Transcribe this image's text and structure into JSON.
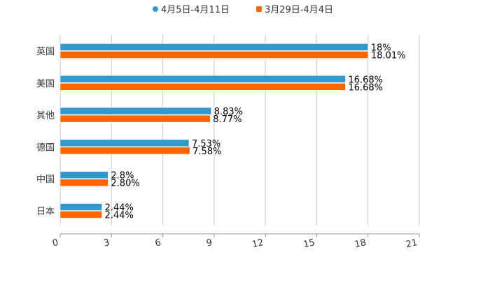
{
  "chart_data": {
    "type": "bar",
    "orientation": "horizontal",
    "title": "",
    "xlabel": "",
    "ylabel": "",
    "xlim": [
      0,
      21
    ],
    "xticks": [
      0,
      3,
      6,
      9,
      12,
      15,
      18,
      21
    ],
    "grid": true,
    "legend_position": "top-center",
    "categories": [
      "英国",
      "美国",
      "其他",
      "德国",
      "中国",
      "日本"
    ],
    "series": [
      {
        "name": "4月5日-4月11日",
        "color": "#3399cc",
        "values": [
          18,
          16.68,
          8.83,
          7.53,
          2.8,
          2.44
        ],
        "labels": [
          "18%",
          "16.68%",
          "8.83%",
          "7.53%",
          "2.8%",
          "2.44%"
        ]
      },
      {
        "name": "3月29日-4月4日",
        "color": "#ff6600",
        "values": [
          18.01,
          16.68,
          8.77,
          7.58,
          2.8,
          2.44
        ],
        "labels": [
          "18.01%",
          "16.68%",
          "8.77%",
          "7.58%",
          "2.80%",
          "2.44%"
        ]
      }
    ]
  }
}
